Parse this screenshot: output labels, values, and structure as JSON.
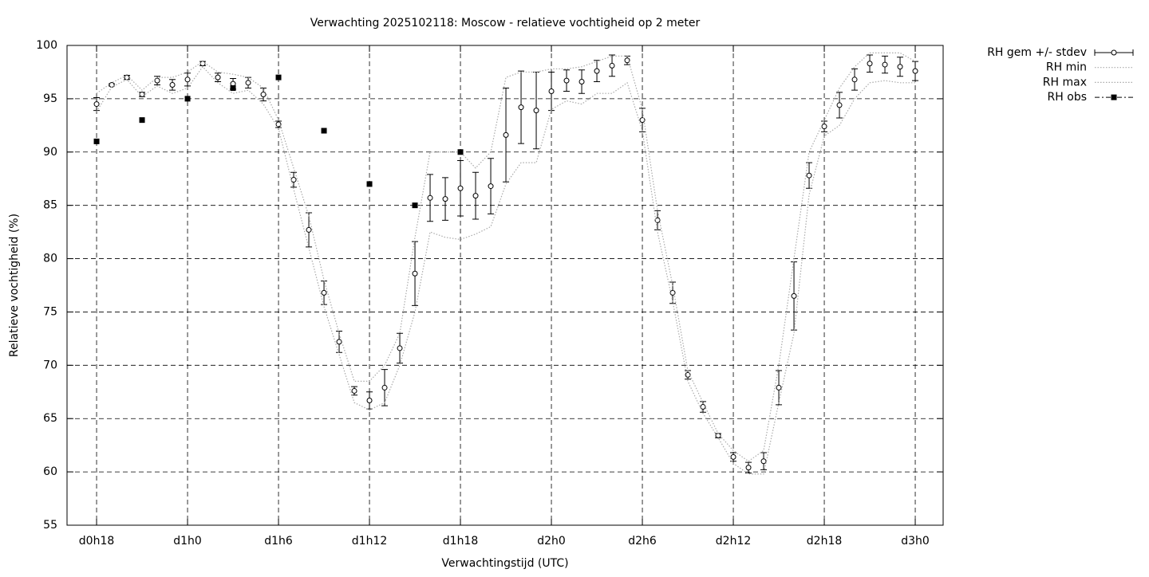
{
  "chart_data": {
    "type": "errorbar",
    "title": "Verwachting 2025102118: Moscow - relatieve vochtigheid op 2 meter",
    "x_label": "Verwachtingstijd (UTC)",
    "y_label": "Relatieve vochtigheid (%)",
    "x": [
      18,
      19,
      20,
      21,
      22,
      23,
      24,
      25,
      26,
      27,
      28,
      29,
      30,
      31,
      32,
      33,
      34,
      35,
      36,
      37,
      38,
      39,
      40,
      41,
      42,
      43,
      44,
      45,
      46,
      47,
      48,
      49,
      50,
      51,
      52,
      53,
      54,
      55,
      56,
      57,
      58,
      59,
      60,
      61,
      62,
      63,
      64,
      65,
      66,
      67,
      68,
      69,
      70,
      71,
      72
    ],
    "series": [
      {
        "name": "RH gem +/- stdev",
        "color": "#000000",
        "values": [
          94.5,
          96.3,
          97.0,
          95.4,
          96.7,
          96.3,
          96.8,
          98.3,
          97.0,
          96.4,
          96.5,
          95.4,
          92.6,
          87.4,
          82.7,
          76.8,
          72.2,
          67.6,
          66.7,
          67.9,
          71.6,
          78.6,
          85.7,
          85.6,
          86.6,
          85.9,
          86.8,
          91.6,
          94.2,
          93.9,
          95.7,
          96.7,
          96.6,
          97.6,
          98.1,
          98.6,
          93.0,
          83.6,
          76.8,
          69.1,
          66.1,
          63.4,
          61.4,
          60.4,
          61.0,
          67.9,
          76.5,
          87.8,
          92.4,
          94.4,
          96.8,
          98.3,
          98.2,
          98.0,
          97.6
        ],
        "errors": [
          0.6,
          0.1,
          0.2,
          0.2,
          0.4,
          0.5,
          0.6,
          0.2,
          0.4,
          0.5,
          0.5,
          0.6,
          0.3,
          0.7,
          1.6,
          1.1,
          1.0,
          0.4,
          0.8,
          1.7,
          1.4,
          3.0,
          2.2,
          2.0,
          2.6,
          2.2,
          2.6,
          4.4,
          3.4,
          3.6,
          1.8,
          1.0,
          1.1,
          1.0,
          1.0,
          0.4,
          1.1,
          0.9,
          1.0,
          0.4,
          0.5,
          0.2,
          0.4,
          0.5,
          0.8,
          1.6,
          3.2,
          1.2,
          0.5,
          1.2,
          1.0,
          0.8,
          0.8,
          0.9,
          0.9
        ]
      },
      {
        "name": "RH min",
        "color": "#aaaaaa",
        "values": [
          93.8,
          96.1,
          96.8,
          95.2,
          96.2,
          95.5,
          96,
          98,
          96.5,
          95.5,
          95.8,
          94.5,
          92.2,
          86.5,
          81,
          75.5,
          71,
          66.5,
          65.8,
          66.5,
          70,
          75,
          82.5,
          82,
          81.8,
          82.3,
          83,
          87,
          89,
          89,
          94,
          94.8,
          94.5,
          95.5,
          95.5,
          96.5,
          92,
          82.5,
          76,
          68.5,
          65.5,
          63.2,
          60.8,
          59.8,
          59.8,
          66.5,
          73,
          86,
          91.5,
          92.5,
          95,
          96.5,
          96.7,
          96.5,
          96.5
        ]
      },
      {
        "name": "RH max",
        "color": "#aaaaaa",
        "values": [
          95.5,
          96.5,
          97.2,
          95.8,
          97,
          97,
          97.5,
          98.5,
          97.5,
          97.3,
          97,
          96,
          93,
          88.5,
          84,
          78,
          73,
          68.5,
          68.5,
          70,
          73,
          82,
          90,
          90,
          90,
          88.5,
          90,
          97,
          97.5,
          97.5,
          97.8,
          97.8,
          98,
          98.5,
          99,
          99,
          94,
          84.5,
          77.5,
          69.5,
          66.5,
          63.6,
          62,
          61,
          62,
          70,
          80,
          90,
          93,
          96,
          98,
          99.3,
          99.3,
          99.3,
          98.5
        ]
      },
      {
        "name": "RH obs",
        "color": "#000000",
        "x": [
          18,
          21,
          24,
          27,
          30,
          33,
          36,
          39,
          42
        ],
        "values": [
          91,
          93,
          95,
          96,
          97,
          92,
          87,
          85,
          90
        ]
      }
    ],
    "xlim": [
      16.05,
      73.84
    ],
    "ylim": [
      55,
      100
    ],
    "xticks": [
      {
        "value": 18,
        "label": "d0h18"
      },
      {
        "value": 24,
        "label": "d1h0"
      },
      {
        "value": 30,
        "label": "d1h6"
      },
      {
        "value": 36,
        "label": "d1h12"
      },
      {
        "value": 42,
        "label": "d1h18"
      },
      {
        "value": 48,
        "label": "d2h0"
      },
      {
        "value": 54,
        "label": "d2h6"
      },
      {
        "value": 60,
        "label": "d2h12"
      },
      {
        "value": 66,
        "label": "d2h18"
      },
      {
        "value": 72,
        "label": "d3h0"
      }
    ],
    "yticks": [
      55,
      60,
      65,
      70,
      75,
      80,
      85,
      90,
      95,
      100
    ],
    "grid": true,
    "legend": "outside-top-right"
  }
}
